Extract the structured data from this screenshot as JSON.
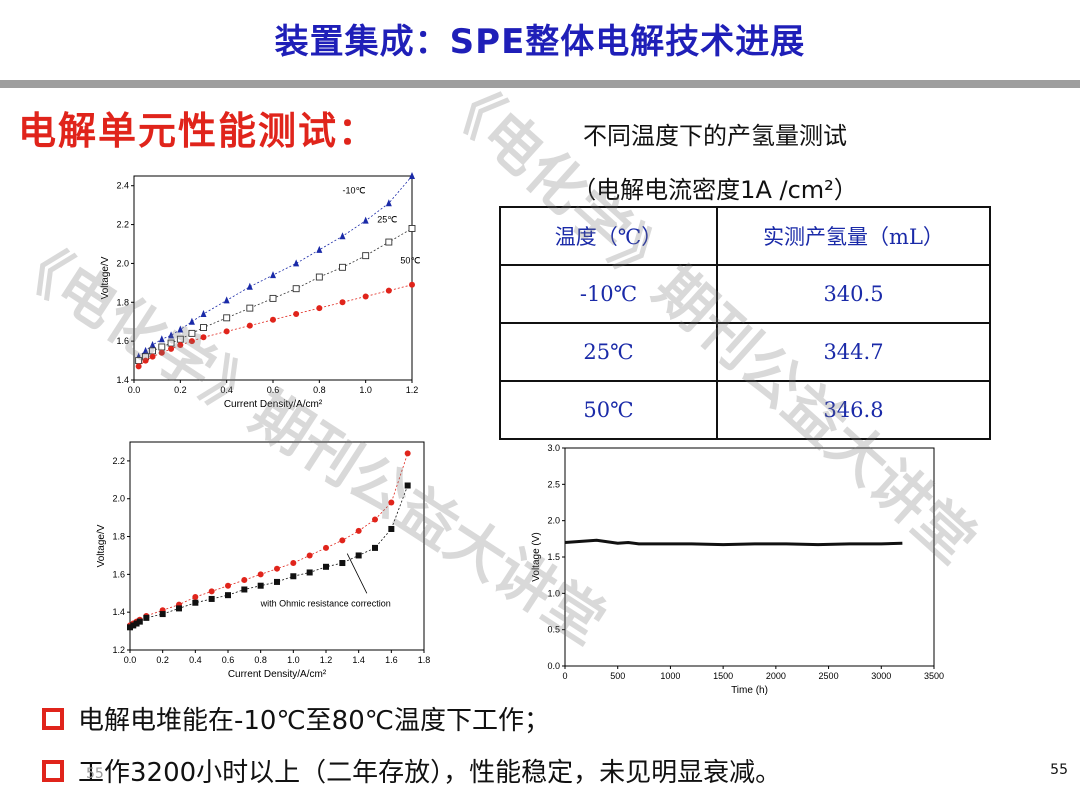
{
  "header": {
    "title": "装置集成：SPE整体电解技术进展"
  },
  "section_heading": "电解单元性能测试：",
  "table": {
    "caption1": "不同温度下的产氢量测试",
    "caption2": "（电解电流密度1A /cm²）",
    "headers": [
      "温度（℃）",
      "实测产氢量（mL）"
    ],
    "rows": [
      [
        "-10℃",
        "340.5"
      ],
      [
        "25℃",
        "344.7"
      ],
      [
        "50℃",
        "346.8"
      ]
    ]
  },
  "bullets": [
    "电解电堆能在-10℃至80℃温度下工作；",
    "工作3200小时以上（二年存放），性能稳定，未见明显衰减。"
  ],
  "page_number": "55",
  "page_number_faint": "55",
  "watermark": "《电化学》期刊公益大讲堂",
  "chart_data": [
    {
      "type": "line",
      "xlabel": "Current Density/A/cm²",
      "ylabel": "Voltage/V",
      "xlim": [
        0.0,
        1.2
      ],
      "ylim": [
        1.4,
        2.45
      ],
      "xticks": [
        "0.0",
        "0.2",
        "0.4",
        "0.6",
        "0.8",
        "1.0",
        "1.2"
      ],
      "yticks": [
        "1.4",
        "1.6",
        "1.8",
        "2.0",
        "2.2",
        "2.4"
      ],
      "series": [
        {
          "name": "-10℃",
          "marker": "triangle",
          "color": "#1a2aa8",
          "x": [
            0.02,
            0.05,
            0.08,
            0.12,
            0.16,
            0.2,
            0.25,
            0.3,
            0.4,
            0.5,
            0.6,
            0.7,
            0.8,
            0.9,
            1.0,
            1.1,
            1.2
          ],
          "y": [
            1.52,
            1.55,
            1.58,
            1.61,
            1.63,
            1.66,
            1.7,
            1.74,
            1.81,
            1.88,
            1.94,
            2.0,
            2.07,
            2.14,
            2.22,
            2.31,
            2.45
          ]
        },
        {
          "name": "25℃",
          "marker": "open-square",
          "color": "#333333",
          "x": [
            0.02,
            0.05,
            0.08,
            0.12,
            0.16,
            0.2,
            0.25,
            0.3,
            0.4,
            0.5,
            0.6,
            0.7,
            0.8,
            0.9,
            1.0,
            1.1,
            1.2
          ],
          "y": [
            1.5,
            1.52,
            1.55,
            1.57,
            1.59,
            1.61,
            1.64,
            1.67,
            1.72,
            1.77,
            1.82,
            1.87,
            1.93,
            1.98,
            2.04,
            2.11,
            2.18
          ]
        },
        {
          "name": "50℃",
          "marker": "circle",
          "color": "#e0241b",
          "x": [
            0.02,
            0.05,
            0.08,
            0.12,
            0.16,
            0.2,
            0.25,
            0.3,
            0.4,
            0.5,
            0.6,
            0.7,
            0.8,
            0.9,
            1.0,
            1.1,
            1.2
          ],
          "y": [
            1.47,
            1.5,
            1.52,
            1.54,
            1.56,
            1.58,
            1.6,
            1.62,
            1.65,
            1.68,
            1.71,
            1.74,
            1.77,
            1.8,
            1.83,
            1.86,
            1.89
          ]
        }
      ]
    },
    {
      "type": "line",
      "xlabel": "Current Density/A/cm²",
      "ylabel": "Voltage/V",
      "annotation": "with Ohmic resistance correction",
      "xlim": [
        0.0,
        1.8
      ],
      "ylim": [
        1.2,
        2.3
      ],
      "xticks": [
        "0.0",
        "0.2",
        "0.4",
        "0.6",
        "0.8",
        "1.0",
        "1.2",
        "1.4",
        "1.6",
        "1.8"
      ],
      "yticks": [
        "1.2",
        "1.4",
        "1.6",
        "1.8",
        "2.0",
        "2.2"
      ],
      "series": [
        {
          "marker": "circle",
          "color": "#e0241b",
          "x": [
            0.0,
            0.02,
            0.04,
            0.06,
            0.1,
            0.2,
            0.3,
            0.4,
            0.5,
            0.6,
            0.7,
            0.8,
            0.9,
            1.0,
            1.1,
            1.2,
            1.3,
            1.4,
            1.5,
            1.6,
            1.7
          ],
          "y": [
            1.33,
            1.34,
            1.35,
            1.36,
            1.38,
            1.41,
            1.44,
            1.48,
            1.51,
            1.54,
            1.57,
            1.6,
            1.63,
            1.66,
            1.7,
            1.74,
            1.78,
            1.83,
            1.89,
            1.98,
            2.24
          ]
        },
        {
          "marker": "square",
          "color": "#111111",
          "x": [
            0.0,
            0.02,
            0.04,
            0.06,
            0.1,
            0.2,
            0.3,
            0.4,
            0.5,
            0.6,
            0.7,
            0.8,
            0.9,
            1.0,
            1.1,
            1.2,
            1.3,
            1.4,
            1.5,
            1.6,
            1.7
          ],
          "y": [
            1.32,
            1.33,
            1.34,
            1.35,
            1.37,
            1.39,
            1.42,
            1.45,
            1.47,
            1.49,
            1.52,
            1.54,
            1.56,
            1.59,
            1.61,
            1.64,
            1.66,
            1.7,
            1.74,
            1.84,
            2.07
          ]
        }
      ]
    },
    {
      "type": "line",
      "xlabel": "Time (h)",
      "ylabel": "Voltage (V)",
      "xlim": [
        0,
        3500
      ],
      "ylim": [
        0.0,
        3.0
      ],
      "xticks": [
        "0",
        "500",
        "1000",
        "1500",
        "2000",
        "2500",
        "3000",
        "3500"
      ],
      "yticks": [
        "0.0",
        "0.5",
        "1.0",
        "1.5",
        "2.0",
        "2.5",
        "3.0"
      ],
      "series": [
        {
          "marker": "square",
          "color": "#111111",
          "x": [
            0,
            100,
            200,
            300,
            400,
            500,
            600,
            700,
            900,
            1200,
            1500,
            1800,
            2100,
            2400,
            2700,
            3000,
            3200
          ],
          "y": [
            1.7,
            1.71,
            1.72,
            1.73,
            1.71,
            1.69,
            1.7,
            1.68,
            1.68,
            1.68,
            1.67,
            1.68,
            1.68,
            1.67,
            1.68,
            1.68,
            1.69
          ]
        }
      ]
    }
  ]
}
